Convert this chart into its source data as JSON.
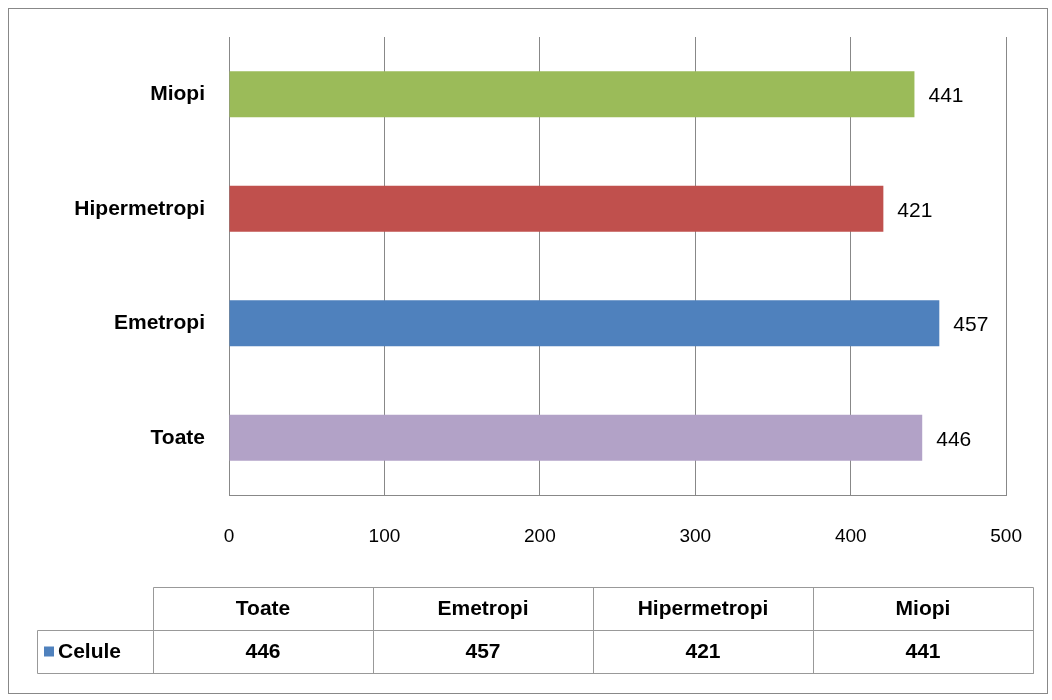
{
  "chart_data": {
    "type": "bar",
    "orientation": "horizontal",
    "categories": [
      "Miopi",
      "Hipermetropi",
      "Emetropi",
      "Toate"
    ],
    "series": [
      {
        "name": "Celule",
        "color": "#4f81bd",
        "values": [
          441,
          421,
          457,
          446
        ],
        "colors": [
          "#9bbb59",
          "#c0504d",
          "#4f81bd",
          "#b2a2c7"
        ]
      }
    ],
    "annotations": [
      "446",
      "457",
      "421",
      "441"
    ],
    "xlim": [
      0,
      500
    ],
    "xticks": [
      0,
      100,
      200,
      300,
      400,
      500
    ],
    "grid": "x",
    "data_labels": true
  }
}
